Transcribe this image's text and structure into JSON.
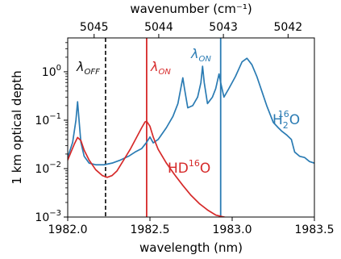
{
  "chart_data": {
    "type": "line",
    "xlabel": "wavelength (nm)",
    "ylabel": "1 km optical depth",
    "top_axis_label": "wavenumber (cm⁻¹)",
    "xlim": [
      1982.0,
      1983.5
    ],
    "ylim": [
      0.001,
      5
    ],
    "y_scale": "log",
    "x_ticks": [
      1982.0,
      1982.5,
      1983.0,
      1983.5
    ],
    "x_tick_labels": [
      "1982.0",
      "1982.5",
      "1983.0",
      "1983.5"
    ],
    "y_ticks": [
      0.001,
      0.01,
      0.1,
      1
    ],
    "y_tick_bases": [
      "10",
      "10",
      "10",
      "10"
    ],
    "y_tick_exps": [
      "−3",
      "−2",
      "−1",
      "0"
    ],
    "top_ticks_wavenumber": [
      5045,
      5044,
      5043,
      5042
    ],
    "top_tick_labels": [
      "5045",
      "5044",
      "5043",
      "5042"
    ],
    "grid": false,
    "series": [
      {
        "name": "H₂¹⁶O",
        "color": "#2a7bb3",
        "x": [
          1982.0,
          1982.03,
          1982.05,
          1982.06,
          1982.07,
          1982.08,
          1982.1,
          1982.13,
          1982.17,
          1982.22,
          1982.27,
          1982.32,
          1982.37,
          1982.41,
          1982.45,
          1982.48,
          1982.5,
          1982.52,
          1982.55,
          1982.6,
          1982.64,
          1982.67,
          1982.69,
          1982.7,
          1982.71,
          1982.73,
          1982.76,
          1982.79,
          1982.81,
          1982.82,
          1982.83,
          1982.85,
          1982.88,
          1982.9,
          1982.92,
          1982.93,
          1982.95,
          1982.98,
          1983.02,
          1983.06,
          1983.09,
          1983.12,
          1983.15,
          1983.18,
          1983.21,
          1983.25,
          1983.28,
          1983.3,
          1983.33,
          1983.36,
          1983.38,
          1983.41,
          1983.44,
          1983.47,
          1983.5
        ],
        "y": [
          0.017,
          0.035,
          0.1,
          0.24,
          0.09,
          0.035,
          0.018,
          0.013,
          0.012,
          0.012,
          0.013,
          0.015,
          0.018,
          0.022,
          0.026,
          0.035,
          0.045,
          0.034,
          0.04,
          0.07,
          0.12,
          0.22,
          0.5,
          0.75,
          0.45,
          0.18,
          0.2,
          0.3,
          0.6,
          1.3,
          0.6,
          0.22,
          0.3,
          0.45,
          0.9,
          0.6,
          0.3,
          0.45,
          0.8,
          1.6,
          1.9,
          1.4,
          0.8,
          0.4,
          0.2,
          0.09,
          0.07,
          0.06,
          0.05,
          0.04,
          0.022,
          0.018,
          0.017,
          0.014,
          0.013
        ]
      },
      {
        "name": "HD¹⁶O",
        "color": "#d62a2a",
        "x": [
          1982.0,
          1982.02,
          1982.04,
          1982.06,
          1982.08,
          1982.1,
          1982.13,
          1982.17,
          1982.21,
          1982.24,
          1982.27,
          1982.3,
          1982.34,
          1982.38,
          1982.42,
          1982.45,
          1982.47,
          1982.48,
          1982.5,
          1982.52,
          1982.55,
          1982.6,
          1982.65,
          1982.7,
          1982.75,
          1982.8,
          1982.85,
          1982.9,
          1982.95,
          1983.0
        ],
        "y": [
          0.015,
          0.022,
          0.032,
          0.044,
          0.038,
          0.024,
          0.015,
          0.0095,
          0.0072,
          0.0066,
          0.0072,
          0.009,
          0.015,
          0.025,
          0.045,
          0.07,
          0.092,
          0.095,
          0.075,
          0.045,
          0.025,
          0.013,
          0.0075,
          0.0045,
          0.0028,
          0.0019,
          0.0014,
          0.0011,
          0.001,
          0.0009
        ]
      }
    ],
    "vlines": [
      {
        "x": 1982.23,
        "color": "#222222",
        "style": "dashed"
      },
      {
        "x": 1982.48,
        "color": "#d62a2a",
        "style": "solid"
      },
      {
        "x": 1982.93,
        "color": "#2a7bb3",
        "style": "solid"
      }
    ],
    "annotations": [
      {
        "base": "λ",
        "sub": "OFF",
        "color": "#111111"
      },
      {
        "base": "λ",
        "sub": "ON",
        "color": "#d62a2a"
      },
      {
        "base": "λ",
        "sub": "ON",
        "color": "#2a7bb3"
      },
      {
        "prefix": "H",
        "sub": "2",
        "sup": "16",
        "suffix": "O",
        "color": "#2a7bb3"
      },
      {
        "prefix": "HD",
        "sup": "16",
        "suffix": "O",
        "color": "#d62a2a"
      }
    ]
  }
}
